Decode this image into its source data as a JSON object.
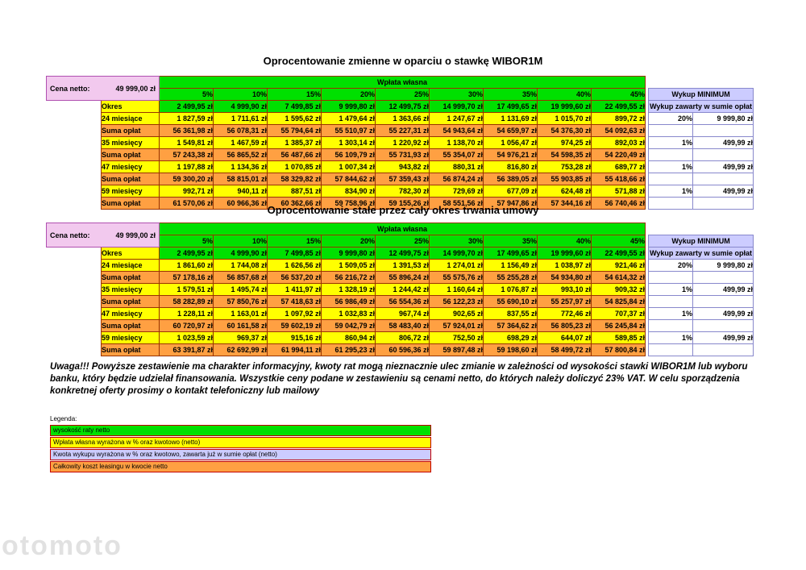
{
  "colors": {
    "green": "#00e000",
    "yellow": "#ffff00",
    "orange": "#ffa042",
    "lavender": "#ccccff",
    "pink": "#f2c9ee",
    "border_main": "#993300",
    "border_lavender": "#8888cc",
    "border_pink": "#b050b0",
    "legend_border": "#c00000"
  },
  "watermark": "otomoto",
  "notice": "Uwaga!!! Powyższe zestawienie ma charakter informacyjny, kwoty rat mogą nieznacznie ulec zmianie w zależności od wysokości stawki WIBOR1M lub wyboru banku, który będzie udzielał finansowania. Wszystkie ceny podane w zestawieniu są cenami netto, do których należy doliczyć 23% VAT. W celu sporządzenia konkretnej oferty prosimy o kontakt telefoniczny lub mailowy",
  "legend": {
    "title": "Legenda:",
    "items": [
      {
        "label": "wysokość raty netto",
        "color": "#00e000"
      },
      {
        "label": "Wpłata własna wyrażona w % oraz kwotowo (netto)",
        "color": "#ffff00"
      },
      {
        "label": "Kwota wykupu wyrażona w % oraz kwotowo, zawarta już w sumie opłat (netto)",
        "color": "#ccccff"
      },
      {
        "label": "Całkowity koszt leasingu w kwocie netto",
        "color": "#ffa042"
      }
    ]
  },
  "tables": [
    {
      "title": "Oprocentowanie zmienne w oparciu o stawkę WIBOR1M",
      "cena_netto": {
        "label": "Cena netto:",
        "value": "49 999,00 zł"
      },
      "wplata_header": "Wpłata własna",
      "wykup_header": "Wykup MINIMUM",
      "percents": [
        "5%",
        "10%",
        "15%",
        "20%",
        "25%",
        "30%",
        "35%",
        "40%",
        "45%"
      ],
      "okres": {
        "label": "Okres",
        "values": [
          "2 499,95 zł",
          "4 999,90 zł",
          "7 499,85 zł",
          "9 999,80 zł",
          "12 499,75 zł",
          "14 999,70 zł",
          "17 499,65 zł",
          "19 999,60 zł",
          "22 499,55 zł"
        ],
        "wykup_note": "Wykup zawarty w sumie opłat"
      },
      "rows": [
        {
          "label": "24 miesiące",
          "kind": "rata",
          "values": [
            "1 827,59 zł",
            "1 711,61 zł",
            "1 595,62 zł",
            "1 479,64 zł",
            "1 363,66 zł",
            "1 247,67 zł",
            "1 131,69 zł",
            "1 015,70 zł",
            "899,72 zł"
          ],
          "wykup": [
            "20%",
            "9 999,80 zł"
          ]
        },
        {
          "label": "Suma opłat",
          "kind": "suma",
          "values": [
            "56 361,98 zł",
            "56 078,31 zł",
            "55 794,64 zł",
            "55 510,97 zł",
            "55 227,31 zł",
            "54 943,64 zł",
            "54 659,97 zł",
            "54 376,30 zł",
            "54 092,63 zł"
          ],
          "wykup": [
            "",
            ""
          ]
        },
        {
          "label": "35 miesięcy",
          "kind": "rata",
          "values": [
            "1 549,81 zł",
            "1 467,59 zł",
            "1 385,37 zł",
            "1 303,14 zł",
            "1 220,92 zł",
            "1 138,70 zł",
            "1 056,47 zł",
            "974,25 zł",
            "892,03 zł"
          ],
          "wykup": [
            "1%",
            "499,99 zł"
          ]
        },
        {
          "label": "Suma opłat",
          "kind": "suma",
          "values": [
            "57 243,38 zł",
            "56 865,52 zł",
            "56 487,66 zł",
            "56 109,79 zł",
            "55 731,93 zł",
            "55 354,07 zł",
            "54 976,21 zł",
            "54 598,35 zł",
            "54 220,49 zł"
          ],
          "wykup": [
            "",
            ""
          ]
        },
        {
          "label": "47 miesięcy",
          "kind": "rata",
          "values": [
            "1 197,88 zł",
            "1 134,36 zł",
            "1 070,85 zł",
            "1 007,34 zł",
            "943,82 zł",
            "880,31 zł",
            "816,80 zł",
            "753,28 zł",
            "689,77 zł"
          ],
          "wykup": [
            "1%",
            "499,99 zł"
          ]
        },
        {
          "label": "Suma opłat",
          "kind": "suma",
          "values": [
            "59 300,20 zł",
            "58 815,01 zł",
            "58 329,82 zł",
            "57 844,62 zł",
            "57 359,43 zł",
            "56 874,24 zł",
            "56 389,05 zł",
            "55 903,85 zł",
            "55 418,66 zł"
          ],
          "wykup": [
            "",
            ""
          ]
        },
        {
          "label": "59 miesięcy",
          "kind": "rata",
          "values": [
            "992,71 zł",
            "940,11 zł",
            "887,51 zł",
            "834,90 zł",
            "782,30 zł",
            "729,69 zł",
            "677,09 zł",
            "624,48 zł",
            "571,88 zł"
          ],
          "wykup": [
            "1%",
            "499,99 zł"
          ]
        },
        {
          "label": "Suma opłat",
          "kind": "suma",
          "values": [
            "61 570,06 zł",
            "60 966,36 zł",
            "60 362,66 zł",
            "59 758,96 zł",
            "59 155,26 zł",
            "58 551,56 zł",
            "57 947,86 zł",
            "57 344,16 zł",
            "56 740,46 zł"
          ],
          "wykup": [
            "",
            ""
          ]
        }
      ]
    },
    {
      "title": "Oprocentowanie stałe przez cały okres trwania umowy",
      "cena_netto": {
        "label": "Cena netto:",
        "value": "49 999,00 zł"
      },
      "wplata_header": "Wpłata własna",
      "wykup_header": "Wykup MINIMUM",
      "percents": [
        "5%",
        "10%",
        "15%",
        "20%",
        "25%",
        "30%",
        "35%",
        "40%",
        "45%"
      ],
      "okres": {
        "label": "Okres",
        "values": [
          "2 499,95 zł",
          "4 999,90 zł",
          "7 499,85 zł",
          "9 999,80 zł",
          "12 499,75 zł",
          "14 999,70 zł",
          "17 499,65 zł",
          "19 999,60 zł",
          "22 499,55 zł"
        ],
        "wykup_note": "Wykup zawarty w sumie opłat"
      },
      "rows": [
        {
          "label": "24 miesiące",
          "kind": "rata",
          "values": [
            "1 861,60 zł",
            "1 744,08 zł",
            "1 626,56 zł",
            "1 509,05 zł",
            "1 391,53 zł",
            "1 274,01 zł",
            "1 156,49 zł",
            "1 038,97 zł",
            "921,46 zł"
          ],
          "wykup": [
            "20%",
            "9 999,80 zł"
          ]
        },
        {
          "label": "Suma opłat",
          "kind": "suma",
          "values": [
            "57 178,16 zł",
            "56 857,68 zł",
            "56 537,20 zł",
            "56 216,72 zł",
            "55 896,24 zł",
            "55 575,76 zł",
            "55 255,28 zł",
            "54 934,80 zł",
            "54 614,32 zł"
          ],
          "wykup": [
            "",
            ""
          ]
        },
        {
          "label": "35 miesięcy",
          "kind": "rata",
          "values": [
            "1 579,51 zł",
            "1 495,74 zł",
            "1 411,97 zł",
            "1 328,19 zł",
            "1 244,42 zł",
            "1 160,64 zł",
            "1 076,87 zł",
            "993,10 zł",
            "909,32 zł"
          ],
          "wykup": [
            "1%",
            "499,99 zł"
          ]
        },
        {
          "label": "Suma opłat",
          "kind": "suma",
          "values": [
            "58 282,89 zł",
            "57 850,76 zł",
            "57 418,63 zł",
            "56 986,49 zł",
            "56 554,36 zł",
            "56 122,23 zł",
            "55 690,10 zł",
            "55 257,97 zł",
            "54 825,84 zł"
          ],
          "wykup": [
            "",
            ""
          ]
        },
        {
          "label": "47 miesięcy",
          "kind": "rata",
          "values": [
            "1 228,11 zł",
            "1 163,01 zł",
            "1 097,92 zł",
            "1 032,83 zł",
            "967,74 zł",
            "902,65 zł",
            "837,55 zł",
            "772,46 zł",
            "707,37 zł"
          ],
          "wykup": [
            "1%",
            "499,99 zł"
          ]
        },
        {
          "label": "Suma opłat",
          "kind": "suma",
          "values": [
            "60 720,97 zł",
            "60 161,58 zł",
            "59 602,19 zł",
            "59 042,79 zł",
            "58 483,40 zł",
            "57 924,01 zł",
            "57 364,62 zł",
            "56 805,23 zł",
            "56 245,84 zł"
          ],
          "wykup": [
            "",
            ""
          ]
        },
        {
          "label": "59 miesięcy",
          "kind": "rata",
          "values": [
            "1 023,59 zł",
            "969,37 zł",
            "915,16 zł",
            "860,94 zł",
            "806,72 zł",
            "752,50 zł",
            "698,29 zł",
            "644,07 zł",
            "589,85 zł"
          ],
          "wykup": [
            "1%",
            "499,99 zł"
          ]
        },
        {
          "label": "Suma opłat",
          "kind": "suma",
          "values": [
            "63 391,87 zł",
            "62 692,99 zł",
            "61 994,11 zł",
            "61 295,23 zł",
            "60 596,36 zł",
            "59 897,48 zł",
            "59 198,60 zł",
            "58 499,72 zł",
            "57 800,84 zł"
          ],
          "wykup": [
            "",
            ""
          ]
        }
      ]
    }
  ]
}
